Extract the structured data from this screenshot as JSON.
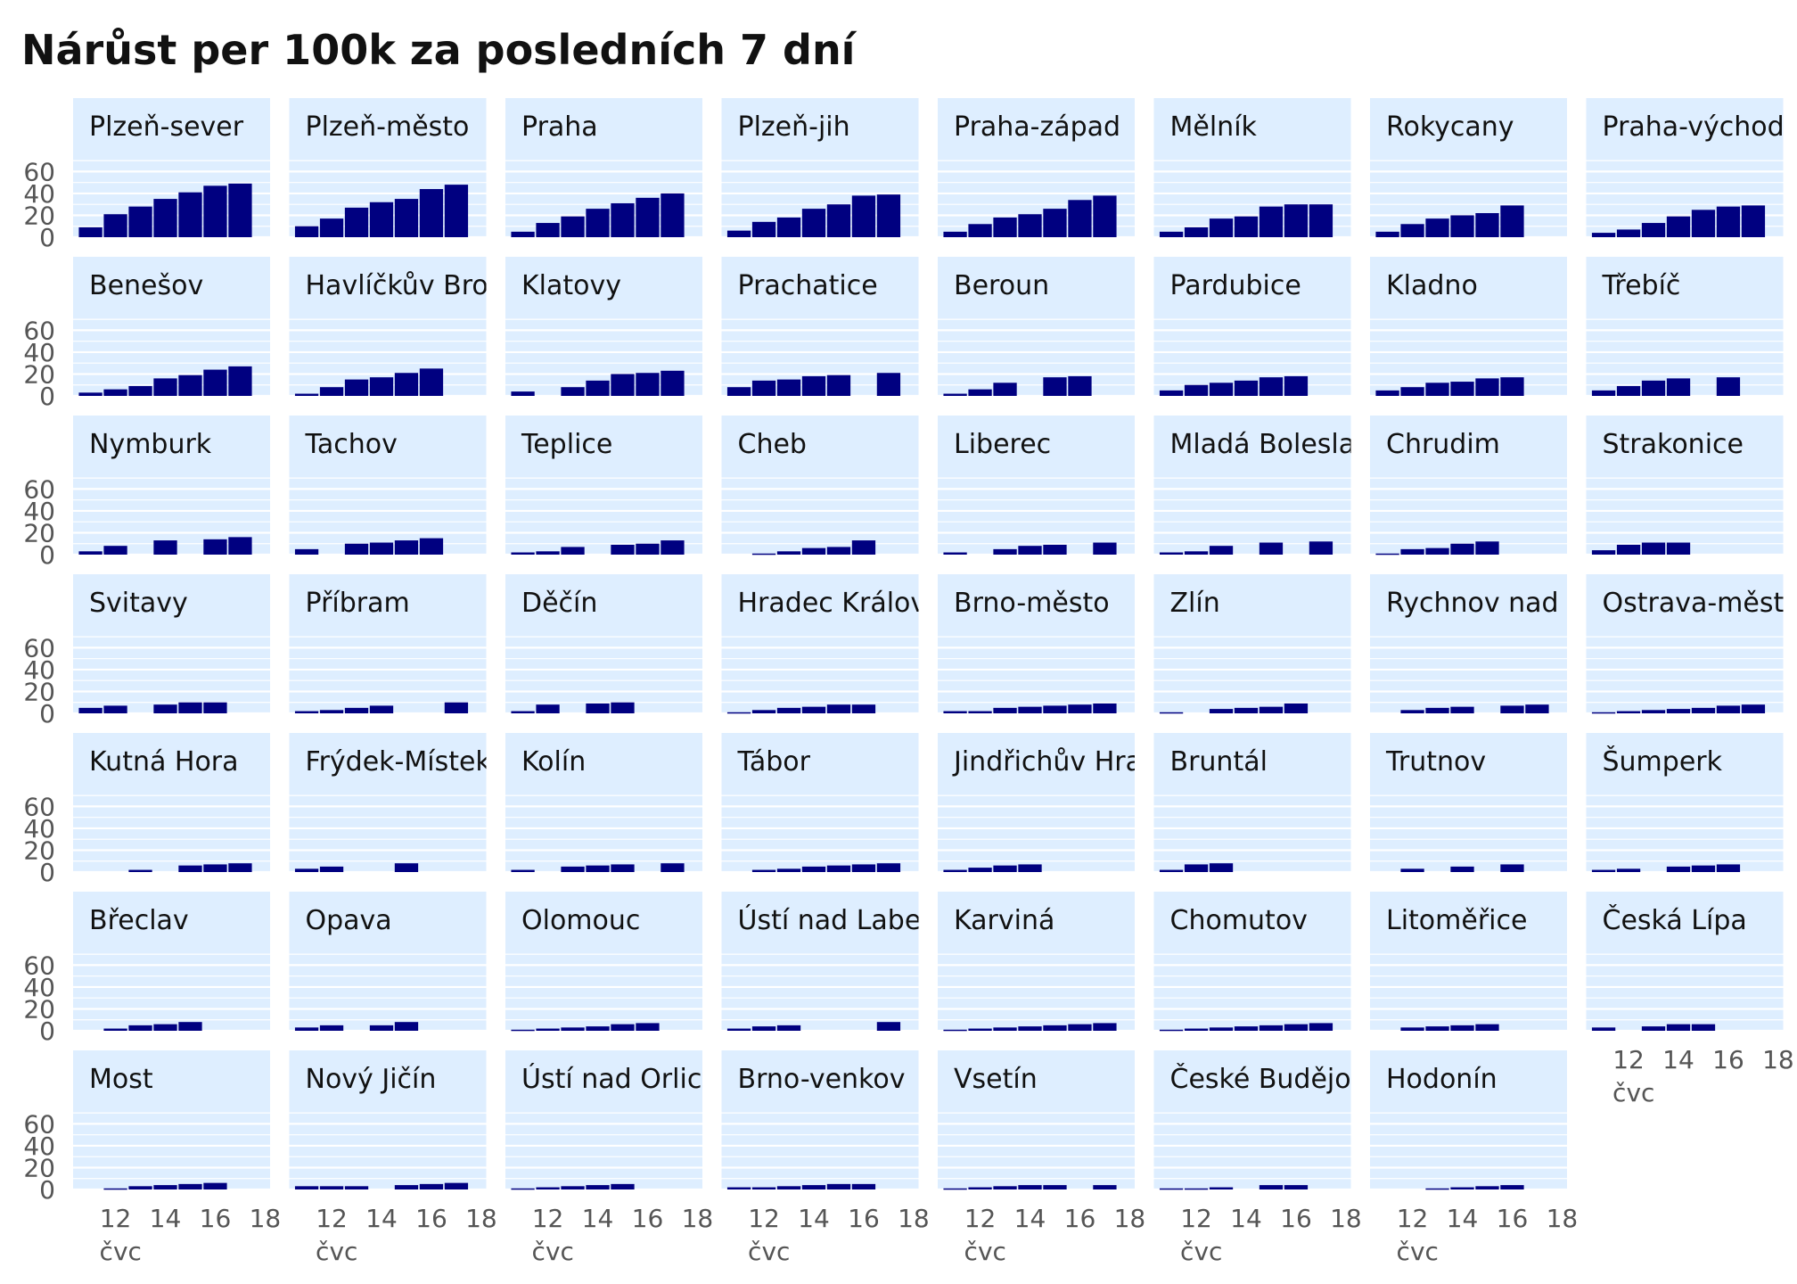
{
  "title": "Nárůst per 100k za posledních 7 dní",
  "colors": {
    "bar": "#000080",
    "panel": "#deeeff",
    "grid": "#ffffff",
    "text": "#111111",
    "axis": "#555555"
  },
  "chart_data": {
    "type": "bar",
    "title": "Nárůst per 100k za posledních 7 dní",
    "x": [
      11,
      12,
      13,
      14,
      15,
      16,
      17
    ],
    "x_ticks": [
      "12",
      "14",
      "16",
      "18"
    ],
    "x_month_label": "čvc",
    "y_ticks": [
      "0",
      "20",
      "40",
      "60"
    ],
    "ylim": [
      0,
      75
    ],
    "xlim": [
      10.3,
      18.2
    ],
    "grid": true,
    "panels": [
      {
        "name": "Plzeň-sever",
        "values": [
          9,
          21,
          28,
          35,
          41,
          47,
          49
        ]
      },
      {
        "name": "Plzeň-město",
        "values": [
          10,
          17,
          27,
          32,
          35,
          44,
          48
        ]
      },
      {
        "name": "Praha",
        "values": [
          5,
          13,
          19,
          26,
          31,
          36,
          40
        ]
      },
      {
        "name": "Plzeň-jih",
        "values": [
          6,
          14,
          18,
          26,
          30,
          38,
          39
        ]
      },
      {
        "name": "Praha-západ",
        "values": [
          5,
          12,
          18,
          21,
          26,
          34,
          38
        ]
      },
      {
        "name": "Mělník",
        "values": [
          5,
          9,
          17,
          19,
          28,
          30,
          30
        ]
      },
      {
        "name": "Rokycany",
        "values": [
          5,
          12,
          17,
          20,
          22,
          29,
          null
        ]
      },
      {
        "name": "Praha-východ",
        "values": [
          4,
          7,
          13,
          19,
          25,
          28,
          29
        ]
      },
      {
        "name": "Benešov",
        "values": [
          3,
          6,
          9,
          16,
          19,
          24,
          27
        ]
      },
      {
        "name": "Havlíčkův Brod",
        "values": [
          2,
          8,
          15,
          17,
          21,
          25,
          null
        ]
      },
      {
        "name": "Klatovy",
        "values": [
          4,
          null,
          8,
          14,
          20,
          21,
          23
        ]
      },
      {
        "name": "Prachatice",
        "values": [
          8,
          14,
          15,
          18,
          19,
          null,
          21
        ]
      },
      {
        "name": "Beroun",
        "values": [
          2,
          6,
          12,
          null,
          17,
          18,
          null
        ]
      },
      {
        "name": "Pardubice",
        "values": [
          5,
          10,
          12,
          14,
          17,
          18,
          null
        ]
      },
      {
        "name": "Kladno",
        "values": [
          5,
          8,
          12,
          13,
          16,
          17,
          null
        ]
      },
      {
        "name": "Třebíč",
        "values": [
          5,
          9,
          14,
          16,
          null,
          17,
          null
        ]
      },
      {
        "name": "Nymburk",
        "values": [
          3,
          8,
          null,
          13,
          null,
          14,
          16
        ]
      },
      {
        "name": "Tachov",
        "values": [
          5,
          null,
          10,
          11,
          13,
          15,
          null
        ]
      },
      {
        "name": "Teplice",
        "values": [
          2,
          3,
          7,
          null,
          9,
          10,
          13
        ]
      },
      {
        "name": "Cheb",
        "values": [
          null,
          1,
          3,
          6,
          7,
          13,
          null
        ]
      },
      {
        "name": "Liberec",
        "values": [
          2,
          null,
          5,
          8,
          9,
          null,
          11
        ]
      },
      {
        "name": "Mladá Boleslav",
        "values": [
          2,
          3,
          8,
          null,
          11,
          null,
          12
        ]
      },
      {
        "name": "Chrudim",
        "values": [
          1,
          5,
          6,
          10,
          12,
          null,
          null
        ]
      },
      {
        "name": "Strakonice",
        "values": [
          4,
          9,
          11,
          11,
          null,
          null,
          null
        ]
      },
      {
        "name": "Svitavy",
        "values": [
          5,
          7,
          null,
          8,
          10,
          10,
          null
        ]
      },
      {
        "name": "Příbram",
        "values": [
          2,
          3,
          5,
          7,
          null,
          null,
          10
        ]
      },
      {
        "name": "Děčín",
        "values": [
          2,
          8,
          null,
          9,
          10,
          null,
          null
        ]
      },
      {
        "name": "Hradec Králové",
        "values": [
          1,
          3,
          5,
          6,
          8,
          8,
          null
        ]
      },
      {
        "name": "Brno-město",
        "values": [
          2,
          2,
          5,
          6,
          7,
          8,
          9
        ]
      },
      {
        "name": "Zlín",
        "values": [
          1,
          null,
          4,
          5,
          6,
          9,
          null
        ]
      },
      {
        "name": "Rychnov nad Kněžnou",
        "values": [
          null,
          3,
          5,
          6,
          null,
          7,
          8
        ]
      },
      {
        "name": "Ostrava-město",
        "values": [
          1,
          2,
          3,
          4,
          5,
          7,
          8
        ]
      },
      {
        "name": "Kutná Hora",
        "values": [
          null,
          null,
          2,
          null,
          6,
          7,
          8
        ]
      },
      {
        "name": "Frýdek-Místek",
        "values": [
          3,
          5,
          null,
          null,
          8,
          null,
          null
        ]
      },
      {
        "name": "Kolín",
        "values": [
          2,
          null,
          5,
          6,
          7,
          null,
          8
        ]
      },
      {
        "name": "Tábor",
        "values": [
          null,
          2,
          3,
          5,
          6,
          7,
          8
        ]
      },
      {
        "name": "Jindřichův Hradec",
        "values": [
          2,
          4,
          6,
          7,
          null,
          null,
          null
        ]
      },
      {
        "name": "Bruntál",
        "values": [
          2,
          7,
          8,
          null,
          null,
          null,
          null
        ]
      },
      {
        "name": "Trutnov",
        "values": [
          null,
          3,
          null,
          5,
          null,
          7,
          null
        ]
      },
      {
        "name": "Šumperk",
        "values": [
          2,
          3,
          null,
          5,
          6,
          7,
          null
        ]
      },
      {
        "name": "Břeclav",
        "values": [
          null,
          2,
          5,
          6,
          8,
          null,
          null
        ]
      },
      {
        "name": "Opava",
        "values": [
          3,
          5,
          null,
          5,
          8,
          null,
          null
        ]
      },
      {
        "name": "Olomouc",
        "values": [
          1,
          2,
          3,
          4,
          6,
          7,
          null
        ]
      },
      {
        "name": "Ústí nad Labem",
        "values": [
          2,
          4,
          5,
          null,
          null,
          null,
          8
        ]
      },
      {
        "name": "Karviná",
        "values": [
          1,
          2,
          3,
          4,
          5,
          6,
          7
        ]
      },
      {
        "name": "Chomutov",
        "values": [
          1,
          2,
          3,
          4,
          5,
          6,
          7
        ]
      },
      {
        "name": "Litoměřice",
        "values": [
          null,
          3,
          4,
          5,
          6,
          null,
          null
        ]
      },
      {
        "name": "Česká Lípa",
        "values": [
          3,
          null,
          4,
          6,
          6,
          null,
          null
        ]
      },
      {
        "name": "Most",
        "values": [
          null,
          1,
          3,
          4,
          5,
          6,
          null
        ]
      },
      {
        "name": "Nový Jičín",
        "values": [
          3,
          3,
          3,
          null,
          4,
          5,
          6
        ]
      },
      {
        "name": "Ústí nad Orlicí",
        "values": [
          1,
          2,
          3,
          4,
          5,
          null,
          null
        ]
      },
      {
        "name": "Brno-venkov",
        "values": [
          2,
          2,
          3,
          4,
          5,
          5,
          null
        ]
      },
      {
        "name": "Vsetín",
        "values": [
          1,
          2,
          3,
          4,
          4,
          null,
          4
        ]
      },
      {
        "name": "České Budějovice",
        "values": [
          1,
          1,
          2,
          null,
          4,
          4,
          null
        ]
      },
      {
        "name": "Hodonín",
        "values": [
          null,
          null,
          1,
          2,
          3,
          4,
          null
        ]
      }
    ]
  }
}
